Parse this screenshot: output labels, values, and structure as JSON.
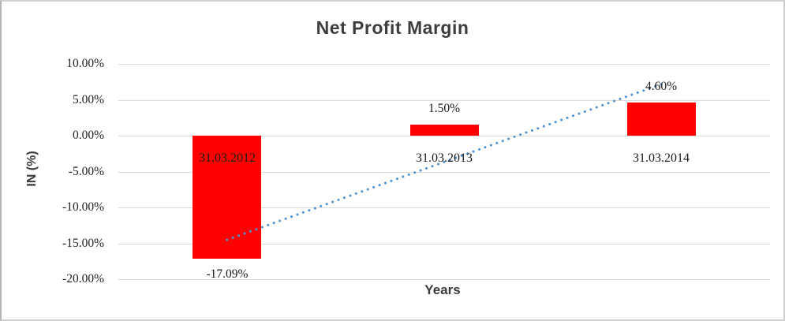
{
  "chart": {
    "title": "Net Profit Margin",
    "y_axis_title": "IN (%)",
    "x_axis_title": "Years"
  },
  "chart_data": {
    "type": "bar",
    "title": "Net Profit Margin",
    "xlabel": "Years",
    "ylabel": "IN (%)",
    "categories": [
      "31.03.2012",
      "31.03.2013",
      "31.03.2014"
    ],
    "values": [
      -17.09,
      1.5,
      4.6
    ],
    "data_labels": [
      "-17.09%",
      "1.50%",
      "4.60%"
    ],
    "bar_color": "#ff0000",
    "ylim": [
      -20,
      10
    ],
    "ytick_values": [
      10,
      5,
      0,
      -5,
      -10,
      -15,
      -20
    ],
    "ytick_labels": [
      "10.00%",
      "5.00%",
      "0.00%",
      "-5.00%",
      "-10.00%",
      "-15.00%",
      "-20.00%"
    ],
    "grid": true,
    "gridline_color": "#d9d9d9",
    "legend": "none",
    "trendline": {
      "type": "linear",
      "style": "dotted",
      "color": "#4f93d2",
      "start_value": -14.51,
      "end_value": 7.18
    }
  }
}
